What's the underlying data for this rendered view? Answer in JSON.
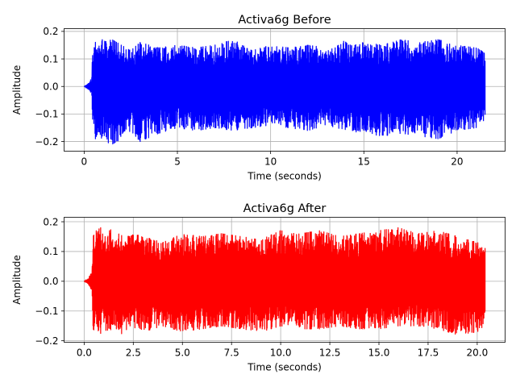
{
  "chart_data": [
    {
      "type": "line",
      "title": "Activa6g Before",
      "xlabel": "Time (seconds)",
      "ylabel": "Amplitude",
      "xlim": [
        -1.075,
        22.575
      ],
      "ylim": [
        -0.235,
        0.21
      ],
      "xticks": [
        0,
        5,
        10,
        15,
        20
      ],
      "xtick_labels": [
        "0",
        "5",
        "10",
        "15",
        "20"
      ],
      "yticks": [
        -0.2,
        -0.1,
        0.0,
        0.1,
        0.2
      ],
      "ytick_labels": [
        "−0.2",
        "−0.1",
        "0.0",
        "0.1",
        "0.2"
      ],
      "grid": true,
      "color": "#0000ff",
      "series": [
        {
          "duration": 21.5,
          "onset": 0.45,
          "envelope": {
            "x": [
              0,
              0.2,
              0.4,
              0.45,
              0.6,
              1.0,
              1.5,
              2.0,
              2.5,
              3.0,
              4.0,
              5.0,
              6.0,
              7.0,
              8.0,
              9.0,
              10.0,
              11.0,
              12.0,
              13.0,
              14.0,
              15.0,
              16.0,
              17.0,
              18.0,
              19.0,
              20.0,
              21.0,
              21.5
            ],
            "upper": [
              0.0,
              0.01,
              0.03,
              0.14,
              0.16,
              0.18,
              0.17,
              0.15,
              0.13,
              0.16,
              0.14,
              0.15,
              0.14,
              0.15,
              0.17,
              0.13,
              0.15,
              0.14,
              0.15,
              0.14,
              0.17,
              0.16,
              0.15,
              0.17,
              0.16,
              0.17,
              0.15,
              0.14,
              0.13
            ],
            "lower": [
              0.0,
              -0.01,
              -0.03,
              -0.15,
              -0.19,
              -0.2,
              -0.21,
              -0.19,
              -0.16,
              -0.2,
              -0.17,
              -0.15,
              -0.16,
              -0.15,
              -0.16,
              -0.15,
              -0.14,
              -0.15,
              -0.16,
              -0.14,
              -0.16,
              -0.17,
              -0.18,
              -0.17,
              -0.18,
              -0.19,
              -0.16,
              -0.15,
              -0.14
            ]
          }
        }
      ]
    },
    {
      "type": "line",
      "title": "Activa6g After",
      "xlabel": "Time (seconds)",
      "ylabel": "Amplitude",
      "xlim": [
        -1.02,
        21.42
      ],
      "ylim": [
        -0.205,
        0.215
      ],
      "xticks": [
        0,
        2.5,
        5.0,
        7.5,
        10.0,
        12.5,
        15.0,
        17.5,
        20.0
      ],
      "xtick_labels": [
        "0.0",
        "2.5",
        "5.0",
        "7.5",
        "10.0",
        "12.5",
        "15.0",
        "17.5",
        "20.0"
      ],
      "yticks": [
        -0.2,
        -0.1,
        0.0,
        0.1,
        0.2
      ],
      "ytick_labels": [
        "−0.2",
        "−0.1",
        "0.0",
        "0.1",
        "0.2"
      ],
      "grid": true,
      "color": "#ff0000",
      "series": [
        {
          "duration": 20.4,
          "onset": 0.45,
          "envelope": {
            "x": [
              0,
              0.2,
              0.4,
              0.45,
              0.7,
              1.0,
              1.5,
              2.0,
              2.5,
              3.0,
              4.0,
              5.0,
              6.0,
              7.0,
              8.0,
              9.0,
              10.0,
              11.0,
              12.0,
              13.0,
              14.0,
              15.0,
              16.0,
              17.0,
              18.0,
              19.0,
              20.0,
              20.4
            ],
            "upper": [
              0.0,
              0.01,
              0.03,
              0.15,
              0.18,
              0.18,
              0.17,
              0.15,
              0.16,
              0.15,
              0.13,
              0.16,
              0.15,
              0.16,
              0.15,
              0.14,
              0.17,
              0.16,
              0.17,
              0.15,
              0.16,
              0.17,
              0.18,
              0.16,
              0.17,
              0.15,
              0.13,
              0.12
            ],
            "lower": [
              0.0,
              -0.01,
              -0.03,
              -0.16,
              -0.18,
              -0.17,
              -0.16,
              -0.18,
              -0.16,
              -0.17,
              -0.15,
              -0.17,
              -0.16,
              -0.15,
              -0.16,
              -0.17,
              -0.15,
              -0.16,
              -0.16,
              -0.15,
              -0.16,
              -0.16,
              -0.15,
              -0.15,
              -0.16,
              -0.18,
              -0.17,
              -0.15
            ]
          }
        }
      ]
    }
  ]
}
